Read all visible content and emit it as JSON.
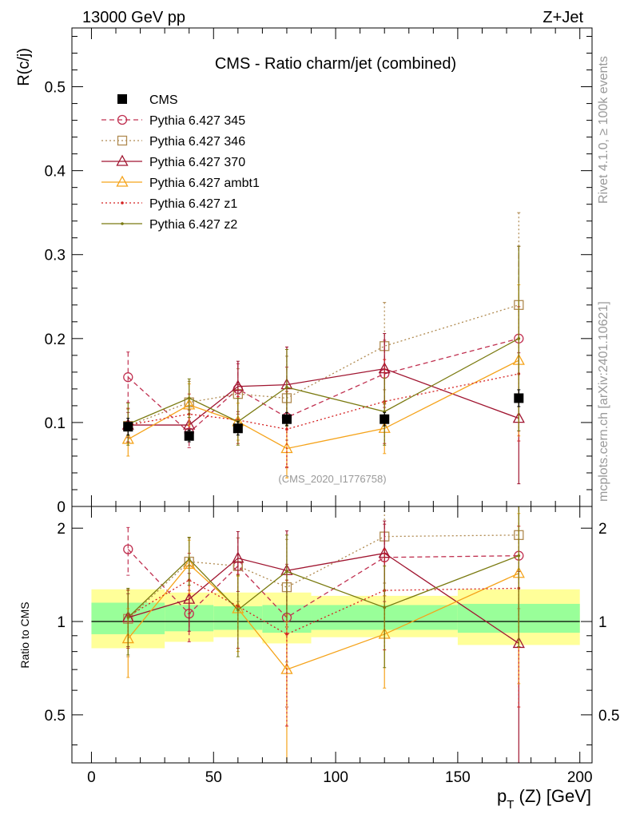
{
  "header": {
    "left": "13000 GeV pp",
    "right": "Z+Jet"
  },
  "side_text": {
    "top": "Rivet 4.1.0, ≥ 100k events",
    "bottom": "mcplots.cern.ch [arXiv:2401.10621]"
  },
  "chart_data": [
    {
      "type": "line",
      "panel": "main",
      "title": "CMS - Ratio charm/jet (combined)",
      "ylabel": "R(c/j)",
      "xlabel": "",
      "xlim": [
        -8,
        205
      ],
      "ylim": [
        0,
        0.57
      ],
      "yticks": [
        0,
        0.1,
        0.2,
        0.3,
        0.4,
        0.5
      ],
      "ytick_labels": [
        "0",
        "0.1",
        "0.2",
        "0.3",
        "0.4",
        "0.5"
      ],
      "watermark": "(CMS_2020_I1776758)",
      "x": [
        15,
        40,
        60,
        80,
        120,
        175
      ],
      "series": [
        {
          "name": "CMS",
          "color": "#000000",
          "marker": "square-filled",
          "dash": "none",
          "line": false,
          "values": [
            0.095,
            0.084,
            0.093,
            0.104,
            0.104,
            0.129
          ],
          "errors": [
            0.01,
            0.007,
            0.008,
            0.008,
            0.008,
            0.01
          ]
        },
        {
          "name": "Pythia 6.427 345",
          "color": "#c03050",
          "marker": "circle-open",
          "dash": "6,4",
          "line": true,
          "values": [
            0.154,
            0.088,
            0.14,
            0.106,
            0.158,
            0.2
          ],
          "errors": [
            0.03,
            0.018,
            0.03,
            0.06,
            0.04,
            0.11
          ]
        },
        {
          "name": "Pythia 6.427 346",
          "color": "#b08a50",
          "marker": "square-open",
          "dash": "2,3",
          "line": true,
          "values": [
            0.096,
            0.124,
            0.134,
            0.129,
            0.191,
            0.24
          ],
          "errors": [
            0.02,
            0.025,
            0.03,
            0.05,
            0.052,
            0.11
          ]
        },
        {
          "name": "Pythia 6.427 370",
          "color": "#a01530",
          "marker": "triangle-open",
          "dash": "none",
          "line": true,
          "values": [
            0.097,
            0.097,
            0.143,
            0.145,
            0.164,
            0.105
          ],
          "errors": [
            0.015,
            0.018,
            0.03,
            0.045,
            0.042,
            0.078
          ]
        },
        {
          "name": "Pythia 6.427 ambt1",
          "color": "#f5a31a",
          "marker": "triangle-open",
          "dash": "none",
          "line": true,
          "values": [
            0.08,
            0.121,
            0.101,
            0.069,
            0.093,
            0.174
          ],
          "errors": [
            0.02,
            0.025,
            0.022,
            0.035,
            0.03,
            0.09
          ]
        },
        {
          "name": "Pythia 6.427 z1",
          "color": "#d42020",
          "marker": "dot",
          "dash": "2,3",
          "line": true,
          "values": [
            0.097,
            0.11,
            0.103,
            0.092,
            0.125,
            0.158
          ],
          "errors": [
            0.02,
            0.024,
            0.028,
            0.045,
            0.05,
            0.08
          ]
        },
        {
          "name": "Pythia 6.427 z2",
          "color": "#7a7a10",
          "marker": "dot",
          "dash": "none",
          "line": true,
          "values": [
            0.098,
            0.129,
            0.101,
            0.142,
            0.113,
            0.2
          ],
          "errors": [
            0.025,
            0.023,
            0.028,
            0.045,
            0.04,
            0.11
          ]
        }
      ]
    },
    {
      "type": "line",
      "panel": "ratio",
      "ylabel": "Ratio to CMS",
      "xlabel": "p_T (Z) [GeV]",
      "xlim": [
        -8,
        205
      ],
      "ylim": [
        0.35,
        2.35
      ],
      "log_y": true,
      "xticks": [
        0,
        50,
        100,
        150,
        200
      ],
      "xtick_labels": [
        "0",
        "50",
        "100",
        "150",
        "200"
      ],
      "yticks": [
        0.5,
        1,
        2
      ],
      "ytick_labels": [
        "0.5",
        "1",
        "2"
      ],
      "reference_line": 1,
      "bands": {
        "bins": [
          [
            0,
            30
          ],
          [
            30,
            50
          ],
          [
            50,
            70
          ],
          [
            70,
            90
          ],
          [
            90,
            150
          ],
          [
            150,
            200
          ]
        ],
        "inner": [
          [
            0.91,
            1.15
          ],
          [
            0.93,
            1.13
          ],
          [
            0.94,
            1.12
          ],
          [
            0.92,
            1.13
          ],
          [
            0.94,
            1.13
          ],
          [
            0.92,
            1.14
          ]
        ],
        "outer": [
          [
            0.82,
            1.27
          ],
          [
            0.86,
            1.24
          ],
          [
            0.89,
            1.24
          ],
          [
            0.85,
            1.24
          ],
          [
            0.89,
            1.21
          ],
          [
            0.84,
            1.27
          ]
        ]
      },
      "x": [
        15,
        40,
        60,
        80,
        120,
        175
      ],
      "series": [
        {
          "name": "Pythia 6.427 345",
          "values": [
            1.71,
            1.06,
            1.51,
            1.03,
            1.61,
            1.63
          ],
          "errors": [
            0.3,
            0.2,
            0.35,
            0.5,
            0.45,
            0.8
          ]
        },
        {
          "name": "Pythia 6.427 346",
          "values": [
            1.02,
            1.56,
            1.51,
            1.29,
            1.88,
            1.9
          ],
          "errors": [
            0.25,
            0.3,
            0.35,
            0.55,
            0.55,
            0.8
          ]
        },
        {
          "name": "Pythia 6.427 370",
          "values": [
            1.03,
            1.18,
            1.6,
            1.46,
            1.66,
            0.85
          ],
          "errors": [
            0.2,
            0.25,
            0.35,
            0.5,
            0.45,
            0.6
          ]
        },
        {
          "name": "Pythia 6.427 ambt1",
          "values": [
            0.88,
            1.53,
            1.1,
            0.7,
            0.91,
            1.43
          ],
          "errors": [
            0.22,
            0.3,
            0.3,
            0.35,
            0.3,
            0.8
          ]
        },
        {
          "name": "Pythia 6.427 z1",
          "values": [
            1.04,
            1.36,
            1.12,
            0.91,
            1.26,
            1.28
          ],
          "errors": [
            0.22,
            0.3,
            0.3,
            0.45,
            0.45,
            0.75
          ]
        },
        {
          "name": "Pythia 6.427 z2",
          "values": [
            1.03,
            1.59,
            1.09,
            1.45,
            1.11,
            1.63
          ],
          "errors": [
            0.25,
            0.28,
            0.32,
            0.45,
            0.4,
            0.8
          ]
        }
      ]
    }
  ]
}
